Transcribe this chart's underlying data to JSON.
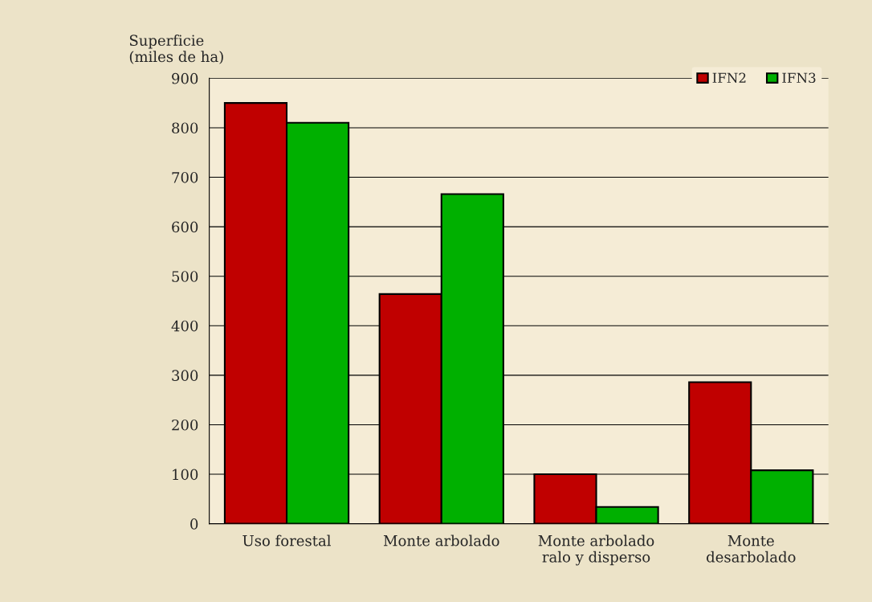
{
  "chart_data": {
    "type": "bar",
    "ylabel": "Superficie\n(miles de ha)",
    "categories": [
      "Uso forestal",
      "Monte arbolado",
      "Monte arbolado\nralo y disperso",
      "Monte\ndesarbolado"
    ],
    "series": [
      {
        "name": "IFN2",
        "color": "#c00000",
        "values": [
          850,
          464,
          100,
          286
        ]
      },
      {
        "name": "IFN3",
        "color": "#00b000",
        "values": [
          810,
          666,
          34,
          108
        ]
      }
    ],
    "ylim": [
      0,
      900
    ],
    "yticks": [
      0,
      100,
      200,
      300,
      400,
      500,
      600,
      700,
      800,
      900
    ],
    "grid": "y",
    "legend": "top right"
  }
}
